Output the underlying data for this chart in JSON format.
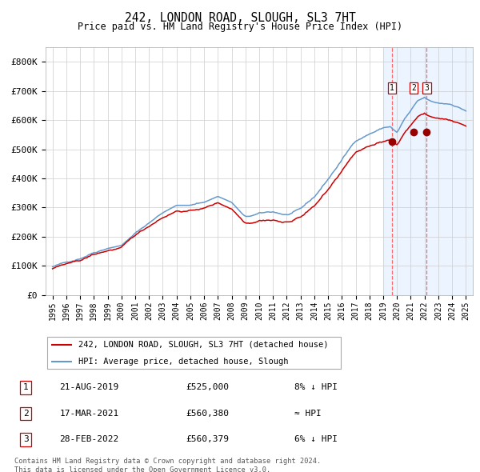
{
  "title": "242, LONDON ROAD, SLOUGH, SL3 7HT",
  "subtitle": "Price paid vs. HM Land Registry's House Price Index (HPI)",
  "legend_line1": "242, LONDON ROAD, SLOUGH, SL3 7HT (detached house)",
  "legend_line2": "HPI: Average price, detached house, Slough",
  "table_rows": [
    {
      "num": "1",
      "date": "21-AUG-2019",
      "price": "£525,000",
      "rel": "8% ↓ HPI"
    },
    {
      "num": "2",
      "date": "17-MAR-2021",
      "price": "£560,380",
      "rel": "≈ HPI"
    },
    {
      "num": "3",
      "date": "28-FEB-2022",
      "price": "£560,379",
      "rel": "6% ↓ HPI"
    }
  ],
  "footer": "Contains HM Land Registry data © Crown copyright and database right 2024.\nThis data is licensed under the Open Government Licence v3.0.",
  "hpi_color": "#6699cc",
  "price_color": "#cc0000",
  "marker_color": "#990000",
  "vline_color": "#ff6666",
  "shade_color": "#ddeeff",
  "grid_color": "#cccccc",
  "bg_color": "#ffffff",
  "ylim": [
    0,
    850000
  ],
  "yticks": [
    0,
    100000,
    200000,
    300000,
    400000,
    500000,
    600000,
    700000,
    800000
  ],
  "sale_dates": [
    2019.64,
    2021.21,
    2022.16
  ],
  "sale_prices": [
    525000,
    560380,
    560379
  ],
  "marker_labels": [
    "1",
    "2",
    "3"
  ],
  "xlim_left": 1994.5,
  "xlim_right": 2025.5
}
